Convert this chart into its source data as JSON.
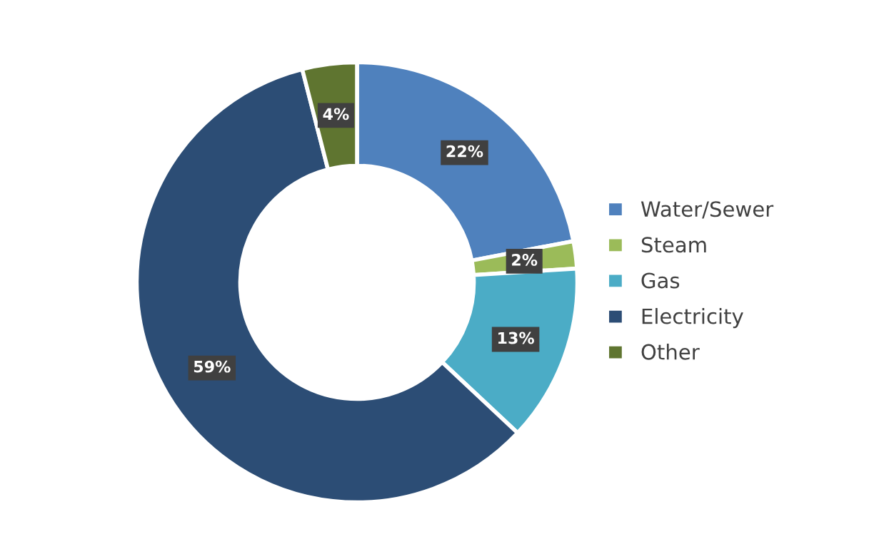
{
  "chart_data": {
    "type": "donut",
    "categories": [
      "Water/Sewer",
      "Steam",
      "Gas",
      "Electricity",
      "Other"
    ],
    "values": [
      22,
      2,
      13,
      59,
      4
    ],
    "value_labels": [
      "22%",
      "2%",
      "13%",
      "59%",
      "4%"
    ],
    "colors": [
      "#4f81bd",
      "#9bbb59",
      "#4bacc6",
      "#2c4d75",
      "#5f7530"
    ],
    "legend": "right"
  }
}
